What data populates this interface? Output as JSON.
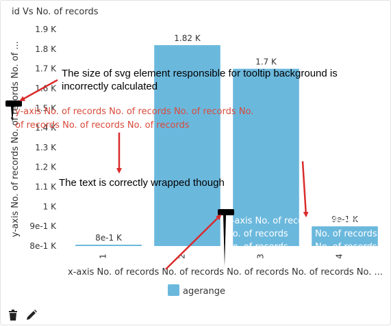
{
  "chart_title": "id Vs No. of records",
  "colors": {
    "bar": "#6bb8dd",
    "annotation": "#d92b2b",
    "redtext": "#d94a3a"
  },
  "chart_data": {
    "type": "bar",
    "title": "id Vs No. of records",
    "categories": [
      "1",
      "2",
      "3",
      "4"
    ],
    "series": [
      {
        "name": "agerange",
        "values": [
          800,
          1820,
          1700,
          900
        ],
        "labels": [
          "8e-1 K",
          "1.82 K",
          "1.7 K",
          "9e-1 K"
        ]
      }
    ],
    "y_ticks": [
      {
        "v": 800,
        "label": "8e-1 K"
      },
      {
        "v": 900,
        "label": "9e-1 K"
      },
      {
        "v": 1000,
        "label": "1 K"
      },
      {
        "v": 1100,
        "label": "1.1 K"
      },
      {
        "v": 1200,
        "label": "1.2 K"
      },
      {
        "v": 1300,
        "label": "1.3 K"
      },
      {
        "v": 1400,
        "label": "1.4 K"
      },
      {
        "v": 1500,
        "label": "1.5 K"
      },
      {
        "v": 1600,
        "label": "1.6 K"
      },
      {
        "v": 1700,
        "label": "1.7 K"
      },
      {
        "v": 1800,
        "label": "1.8 K"
      },
      {
        "v": 1900,
        "label": "1.9 K"
      }
    ],
    "ylim": [
      800,
      1900
    ],
    "xlabel": "x-axis No. of records No. of records No. of records No. of records No. ...",
    "ylabel": "y-axis No. of records No. of records No. of ...",
    "legend_position": "bottom-center",
    "grid": false
  },
  "tooltips": {
    "y_axis_lines": [
      "y-axis No. of records No. of records No. of records No.",
      "of records No. of records No. of records"
    ],
    "x_axis_lines": [
      "x-axis No. of records",
      "No. of records",
      "No. of records"
    ]
  },
  "annotations": {
    "svg_note_line1": "The size of svg element responsible for tooltip background is",
    "svg_note_line2": "incorrectly calculated",
    "wrap_note": "The text is correctly wrapped though"
  },
  "legend": {
    "label": "agerange"
  },
  "footer": {
    "delete_icon": "trash-icon",
    "edit_icon": "pencil-icon"
  }
}
